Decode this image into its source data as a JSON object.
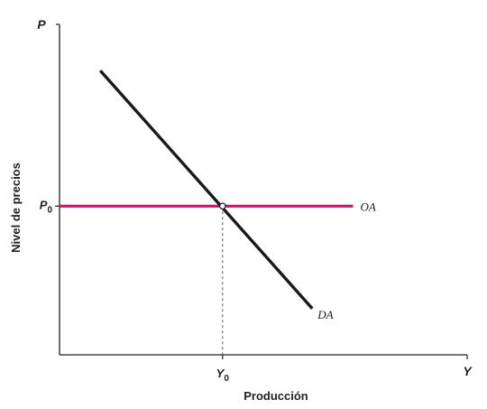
{
  "chart_data": {
    "type": "line",
    "title": "",
    "xlabel": "Producción",
    "ylabel": "Nivel de precios",
    "x_axis_var": "Y",
    "y_axis_var": "P",
    "xlim": [
      0,
      10
    ],
    "ylim": [
      0,
      10
    ],
    "grid": false,
    "legend": "none",
    "ticks": {
      "x": [
        {
          "base": "Y",
          "sub": "0",
          "value": 4.0
        }
      ],
      "y": [
        {
          "base": "P",
          "sub": "0",
          "value": 4.5
        }
      ]
    },
    "series": [
      {
        "name": "OA",
        "color": "#c8166e",
        "points": [
          [
            0,
            4.5
          ],
          [
            7.2,
            4.5
          ]
        ]
      },
      {
        "name": "DA",
        "color": "#1a1a1a",
        "points": [
          [
            1.0,
            8.6
          ],
          [
            6.2,
            1.4
          ]
        ]
      }
    ],
    "equilibrium": {
      "x": 4.0,
      "y": 4.5
    }
  }
}
